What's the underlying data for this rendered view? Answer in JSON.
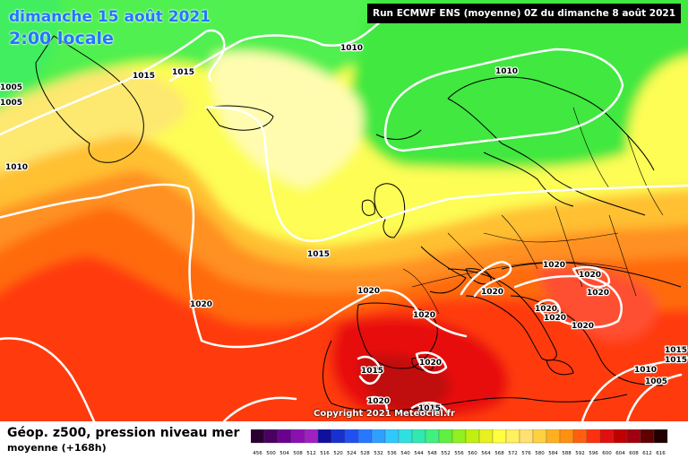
{
  "header": {
    "date": "dimanche 15 août 2021",
    "time": "2:00 locale",
    "run": "Run ECMWF ENS (moyenne) 0Z du dimanche 8 août 2021"
  },
  "footer": {
    "title": "Géop. z500, pression niveau mer",
    "subtitle": "moyenne   (+168h)",
    "copyright": "Copyright 2021 Meteociel.fr"
  },
  "isobar_labels": [
    "1005",
    "1005",
    "1015",
    "1015",
    "1010",
    "1010",
    "1010",
    "1015",
    "1020",
    "1020",
    "1020",
    "1020",
    "1020",
    "1020",
    "1020",
    "1020",
    "1020",
    "1020",
    "1020",
    "1015",
    "1015",
    "1020",
    "1015",
    "1015",
    "1010",
    "1005"
  ],
  "color_scale": {
    "labels": [
      "456",
      "500",
      "504",
      "508",
      "512",
      "516",
      "520",
      "524",
      "528",
      "532",
      "536",
      "540",
      "544",
      "548",
      "552",
      "556",
      "560",
      "564",
      "568",
      "572",
      "576",
      "580",
      "584",
      "588",
      "592",
      "596",
      "600",
      "604",
      "608",
      "612",
      "616"
    ],
    "colors": [
      "#2a0030",
      "#4a0060",
      "#6a0090",
      "#8a10b0",
      "#a020c0",
      "#1010a0",
      "#1830d0",
      "#2050f0",
      "#2878ff",
      "#30a0ff",
      "#30c8ff",
      "#30e0e0",
      "#30e8b0",
      "#40f080",
      "#60f040",
      "#90f020",
      "#c0f010",
      "#e8f020",
      "#ffff40",
      "#fff060",
      "#ffe070",
      "#ffd040",
      "#ffb020",
      "#ff9010",
      "#ff6010",
      "#ff3010",
      "#e01010",
      "#c00000",
      "#a00010",
      "#600000",
      "#200000"
    ]
  }
}
